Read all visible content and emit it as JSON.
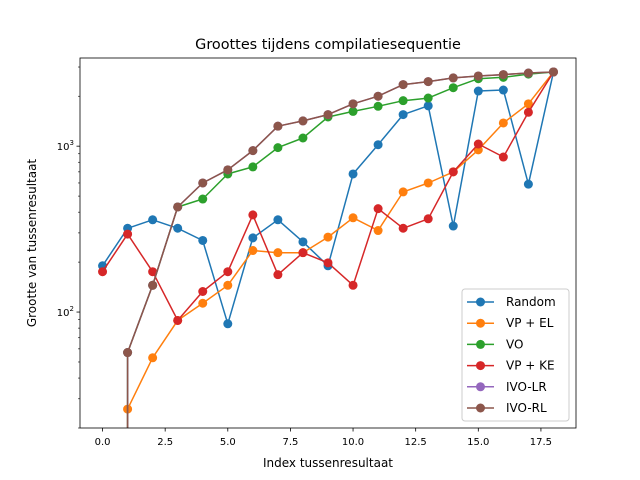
{
  "chart_data": {
    "type": "line",
    "title": "Groottes tijdens compilatiesequentie",
    "xlabel": "Index tussenresultaat",
    "ylabel": "Grootte van tussenresultaat",
    "yscale": "log",
    "xlim": [
      -0.9,
      18.9
    ],
    "ylim": [
      20,
      3400
    ],
    "xticks": [
      0.0,
      2.5,
      5.0,
      7.5,
      10.0,
      12.5,
      15.0,
      17.5
    ],
    "xtick_labels": [
      "0.0",
      "2.5",
      "5.0",
      "7.5",
      "10.0",
      "12.5",
      "15.0",
      "17.5"
    ],
    "yticks": [
      100,
      1000
    ],
    "ytick_labels": [
      {
        "base": "10",
        "exp": "2"
      },
      {
        "base": "10",
        "exp": "3"
      }
    ],
    "legend_position": "lower right",
    "series": [
      {
        "name": "Random",
        "color": "#1f77b4",
        "x": [
          0,
          1,
          2,
          3,
          4,
          5,
          6,
          7,
          8,
          9,
          10,
          11,
          12,
          13,
          14,
          15,
          16,
          17,
          18
        ],
        "y": [
          190,
          320,
          360,
          320,
          270,
          85,
          280,
          360,
          265,
          190,
          680,
          1020,
          1550,
          1750,
          330,
          2150,
          2180,
          590,
          2800
        ]
      },
      {
        "name": "VP + EL",
        "color": "#ff7f0e",
        "x": [
          1,
          2,
          3,
          4,
          5,
          6,
          7,
          8,
          9,
          10,
          11,
          12,
          13,
          14,
          15,
          16,
          17,
          18
        ],
        "y": [
          26,
          53,
          89,
          113,
          145,
          235,
          228,
          228,
          283,
          370,
          310,
          530,
          600,
          700,
          950,
          1380,
          1800,
          2800
        ]
      },
      {
        "name": "VO",
        "color": "#2ca02c",
        "x": [
          1,
          2,
          3,
          4,
          5,
          6,
          7,
          8,
          9,
          10,
          11,
          12,
          13,
          14,
          15,
          16,
          17,
          18
        ],
        "y": [
          57,
          145,
          430,
          480,
          680,
          750,
          980,
          1120,
          1500,
          1620,
          1740,
          1880,
          1950,
          2250,
          2550,
          2600,
          2720,
          2800
        ]
      },
      {
        "name": "VP + KE",
        "color": "#d62728",
        "x": [
          0,
          1,
          2,
          3,
          4,
          5,
          6,
          7,
          8,
          9,
          10,
          11,
          12,
          13,
          14,
          15,
          16,
          17,
          18
        ],
        "y": [
          175,
          295,
          175,
          89,
          133,
          175,
          385,
          168,
          228,
          198,
          145,
          420,
          320,
          365,
          700,
          1030,
          860,
          1600,
          2800
        ]
      },
      {
        "name": "IVO-LR",
        "color": "#9467bd",
        "x": [
          1,
          2,
          3,
          4,
          5,
          6,
          7,
          8,
          9,
          10,
          11,
          12,
          13,
          14,
          15,
          16,
          17,
          18
        ],
        "y": [
          57,
          145,
          430,
          600,
          720,
          940,
          1320,
          1420,
          1550,
          1800,
          2000,
          2350,
          2450,
          2580,
          2650,
          2700,
          2760,
          2800
        ]
      },
      {
        "name": "IVO-RL",
        "color": "#8c564b",
        "x": [
          1,
          2,
          3,
          4,
          5,
          6,
          7,
          8,
          9,
          10,
          11,
          12,
          13,
          14,
          15,
          16,
          17,
          18
        ],
        "y": [
          57,
          145,
          430,
          600,
          720,
          940,
          1320,
          1420,
          1550,
          1800,
          2000,
          2350,
          2450,
          2580,
          2650,
          2700,
          2760,
          2800
        ]
      }
    ]
  }
}
